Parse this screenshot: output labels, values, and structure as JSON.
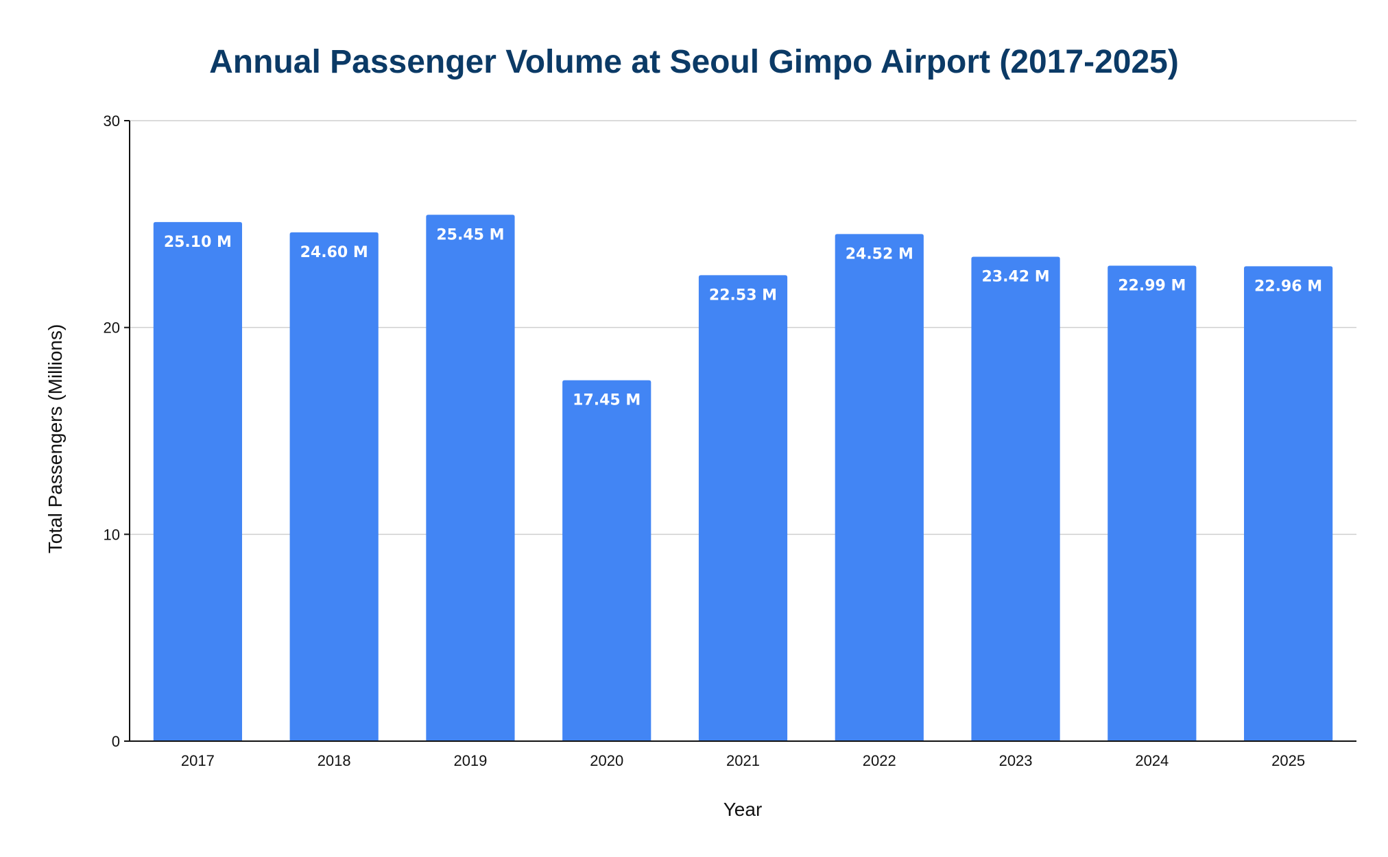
{
  "chart_data": {
    "type": "bar",
    "title": "Annual Passenger Volume at Seoul Gimpo Airport (2017-2025)",
    "xlabel": "Year",
    "ylabel": "Total Passengers (Millions)",
    "categories": [
      "2017",
      "2018",
      "2019",
      "2020",
      "2021",
      "2022",
      "2023",
      "2024",
      "2025"
    ],
    "values": [
      25.1,
      24.6,
      25.45,
      17.45,
      22.53,
      24.52,
      23.42,
      22.99,
      22.96
    ],
    "data_labels": [
      "25.10 M",
      "24.60 M",
      "25.45 M",
      "17.45 M",
      "22.53 M",
      "24.52 M",
      "23.42 M",
      "22.99 M",
      "22.96 M"
    ],
    "ylim": [
      0,
      30
    ],
    "yticks": [
      "0",
      "10",
      "20",
      "30"
    ],
    "grid": true,
    "legend": "none",
    "bar_color": "#4285f4",
    "title_color": "#0b3a66"
  }
}
